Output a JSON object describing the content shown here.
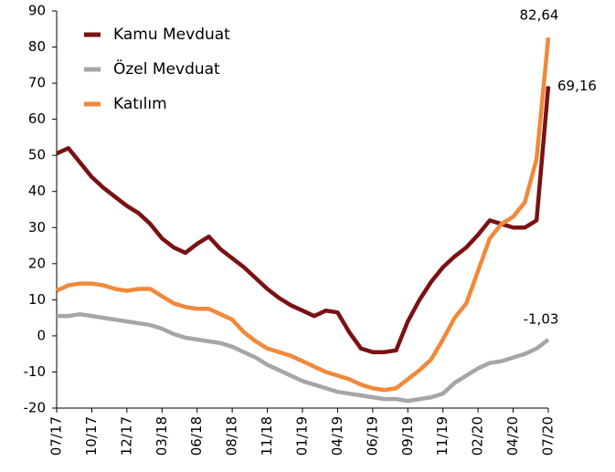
{
  "chart_data": {
    "type": "line",
    "categories": [
      "07/17",
      null,
      null,
      "10/17",
      null,
      null,
      "12/17",
      null,
      null,
      "03/18",
      null,
      null,
      "06/18",
      null,
      null,
      "08/18",
      null,
      null,
      "11/18",
      null,
      null,
      "01/19",
      null,
      null,
      "04/19",
      null,
      null,
      "06/19",
      null,
      null,
      "09/19",
      null,
      null,
      "11/19",
      null,
      null,
      "02/20",
      null,
      null,
      "04/20",
      null,
      null,
      "07/20"
    ],
    "series": [
      {
        "name": "Kamu Mevduat",
        "color": "#7b1113",
        "values": [
          50.5,
          52,
          48,
          44,
          41,
          38.5,
          36,
          34,
          31,
          27,
          24.5,
          23,
          25.5,
          27.5,
          24,
          21.5,
          19,
          16,
          13,
          10.5,
          8.5,
          7,
          5.5,
          7,
          6.5,
          1,
          -3.5,
          -4.5,
          -4.5,
          -4,
          4,
          10,
          15,
          19,
          22,
          24.5,
          28,
          32,
          31,
          30,
          30,
          32,
          69.16
        ],
        "value_labels": [
          null,
          null,
          null,
          null,
          null,
          null,
          null,
          null,
          null,
          null,
          null,
          null,
          null,
          null,
          null,
          null,
          null,
          null,
          null,
          null,
          null,
          null,
          null,
          null,
          null,
          null,
          null,
          null,
          null,
          null,
          null,
          null,
          null,
          null,
          null,
          null,
          null,
          null,
          null,
          null,
          null,
          null,
          "69,16"
        ]
      },
      {
        "name": "Özel Mevduat",
        "color": "#a6a6a6",
        "values": [
          5.5,
          5.5,
          6,
          5.5,
          5,
          4.5,
          4,
          3.5,
          3,
          2,
          0.5,
          -0.5,
          -1,
          -1.5,
          -2,
          -3,
          -4.5,
          -6,
          -8,
          -9.5,
          -11,
          -12.5,
          -13.5,
          -14.5,
          -15.5,
          -16,
          -16.5,
          -17,
          -17.5,
          -17.5,
          -18,
          -17.5,
          -17,
          -16,
          -13,
          -11,
          -9,
          -7.5,
          -7,
          -6,
          -5,
          -3.5,
          -1.03
        ],
        "value_labels": [
          null,
          null,
          null,
          null,
          null,
          null,
          null,
          null,
          null,
          null,
          null,
          null,
          null,
          null,
          null,
          null,
          null,
          null,
          null,
          null,
          null,
          null,
          null,
          null,
          null,
          null,
          null,
          null,
          null,
          null,
          null,
          null,
          null,
          null,
          null,
          null,
          null,
          null,
          null,
          null,
          null,
          null,
          "-1,03"
        ]
      },
      {
        "name": "Katılım",
        "color": "#f0893b",
        "values": [
          12.5,
          14,
          14.5,
          14.5,
          14,
          13,
          12.5,
          13,
          13,
          11,
          9,
          8,
          7.5,
          7.5,
          6,
          4.5,
          1,
          -1.5,
          -3.5,
          -4.5,
          -5.5,
          -7,
          -8.5,
          -10,
          -11,
          -12,
          -13.5,
          -14.5,
          -15,
          -14.5,
          -12,
          -9.5,
          -6.5,
          -1,
          5,
          9,
          18,
          27,
          31,
          33,
          37,
          49,
          82.64
        ],
        "value_labels": [
          null,
          null,
          null,
          null,
          null,
          null,
          null,
          null,
          null,
          null,
          null,
          null,
          null,
          null,
          null,
          null,
          null,
          null,
          null,
          null,
          null,
          null,
          null,
          null,
          null,
          null,
          null,
          null,
          null,
          null,
          null,
          null,
          null,
          null,
          null,
          null,
          null,
          null,
          null,
          null,
          null,
          null,
          "82,64"
        ]
      }
    ],
    "ylim": [
      -20,
      90
    ],
    "yticks": [
      -20,
      -10,
      0,
      10,
      20,
      30,
      40,
      50,
      60,
      70,
      80,
      90
    ],
    "legend": "upper left",
    "grid": false
  }
}
